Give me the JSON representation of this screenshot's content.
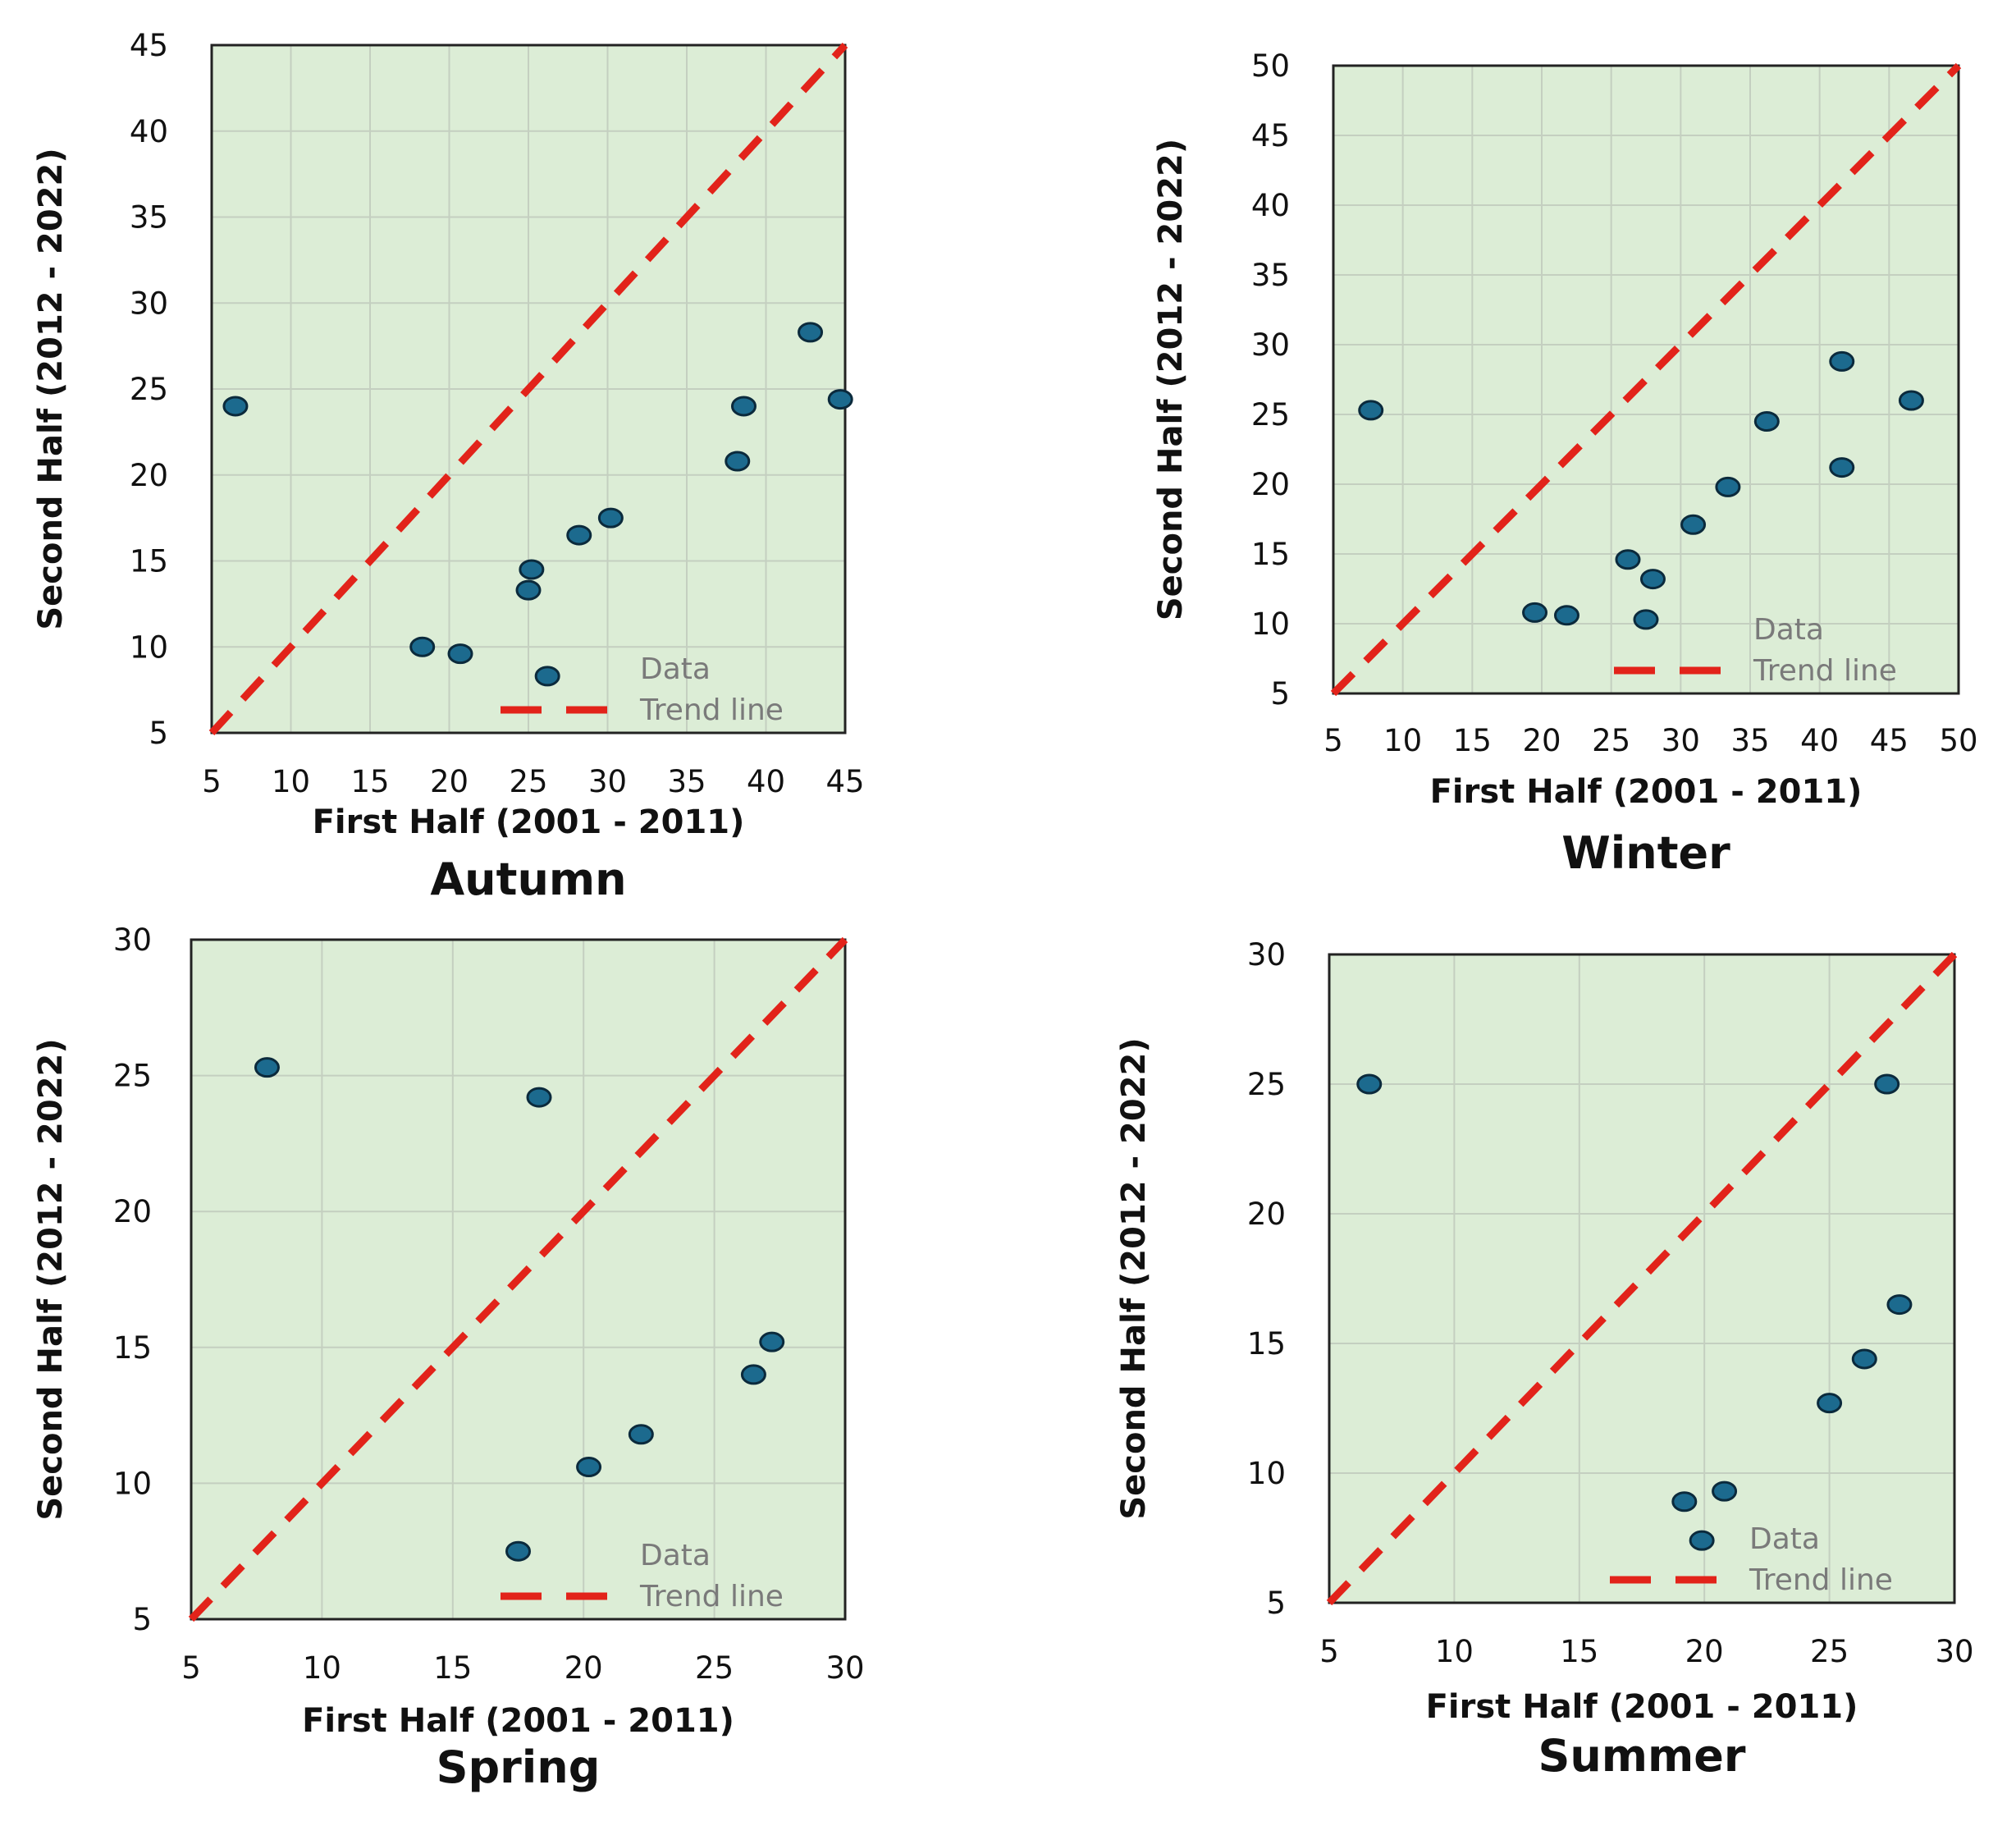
{
  "chart_data": [
    {
      "type": "scatter",
      "title": "Autumn",
      "xlabel": "First Half (2001 - 2011)",
      "ylabel": "Second Half (2012 - 2022)",
      "xlim": [
        5,
        45
      ],
      "ylim": [
        5,
        45
      ],
      "xticks": [
        5,
        10,
        15,
        20,
        25,
        30,
        35,
        40,
        45
      ],
      "yticks": [
        5,
        10,
        15,
        20,
        25,
        30,
        35,
        40,
        45
      ],
      "grid": true,
      "legend_position": "bottom-right",
      "series": [
        {
          "name": "Data",
          "points": [
            [
              6.5,
              24.0
            ],
            [
              18.3,
              10.0
            ],
            [
              20.7,
              9.6
            ],
            [
              25.0,
              13.3
            ],
            [
              25.2,
              14.5
            ],
            [
              26.2,
              8.3
            ],
            [
              28.2,
              16.5
            ],
            [
              30.2,
              17.5
            ],
            [
              38.2,
              20.8
            ],
            [
              38.6,
              24.0
            ],
            [
              42.8,
              28.3
            ],
            [
              44.7,
              24.4
            ]
          ]
        },
        {
          "name": "Trend line",
          "points": [
            [
              5,
              5
            ],
            [
              45,
              45
            ]
          ]
        }
      ]
    },
    {
      "type": "scatter",
      "title": "Winter",
      "xlabel": "First Half (2001 - 2011)",
      "ylabel": "Second Half (2012 - 2022)",
      "xlim": [
        5,
        50
      ],
      "ylim": [
        5,
        50
      ],
      "xticks": [
        5,
        10,
        15,
        20,
        25,
        30,
        35,
        40,
        45,
        50
      ],
      "yticks": [
        5,
        10,
        15,
        20,
        25,
        30,
        35,
        40,
        45,
        50
      ],
      "grid": true,
      "legend_position": "bottom-right",
      "series": [
        {
          "name": "Data",
          "points": [
            [
              7.7,
              25.3
            ],
            [
              19.5,
              10.8
            ],
            [
              21.8,
              10.6
            ],
            [
              26.2,
              14.6
            ],
            [
              27.5,
              10.3
            ],
            [
              28.0,
              13.2
            ],
            [
              30.9,
              17.1
            ],
            [
              33.4,
              19.8
            ],
            [
              36.2,
              24.5
            ],
            [
              41.6,
              28.8
            ],
            [
              41.6,
              21.2
            ],
            [
              46.6,
              26.0
            ]
          ]
        },
        {
          "name": "Trend line",
          "points": [
            [
              5,
              5
            ],
            [
              50,
              50
            ]
          ]
        }
      ]
    },
    {
      "type": "scatter",
      "title": "Spring",
      "xlabel": "First Half (2001 - 2011)",
      "ylabel": "Second Half (2012 - 2022)",
      "xlim": [
        5,
        30
      ],
      "ylim": [
        5,
        30
      ],
      "xticks": [
        5,
        10,
        15,
        20,
        25,
        30
      ],
      "yticks": [
        5,
        10,
        15,
        20,
        25,
        30
      ],
      "grid": true,
      "legend_position": "bottom-right",
      "series": [
        {
          "name": "Data",
          "points": [
            [
              7.9,
              25.3
            ],
            [
              17.5,
              7.5
            ],
            [
              18.3,
              24.2
            ],
            [
              20.2,
              10.6
            ],
            [
              22.2,
              11.8
            ],
            [
              26.5,
              14.0
            ],
            [
              27.2,
              15.2
            ]
          ]
        },
        {
          "name": "Trend line",
          "points": [
            [
              5,
              5
            ],
            [
              30,
              30
            ]
          ]
        }
      ]
    },
    {
      "type": "scatter",
      "title": "Summer",
      "xlabel": "First Half (2001 - 2011)",
      "ylabel": "Second Half (2012 - 2022)",
      "xlim": [
        5,
        30
      ],
      "ylim": [
        5,
        30
      ],
      "xticks": [
        5,
        10,
        15,
        20,
        25,
        30
      ],
      "yticks": [
        5,
        10,
        15,
        20,
        25,
        30
      ],
      "grid": true,
      "legend_position": "bottom-right",
      "series": [
        {
          "name": "Data",
          "points": [
            [
              6.6,
              25.0
            ],
            [
              19.2,
              8.9
            ],
            [
              19.9,
              7.4
            ],
            [
              20.8,
              9.3
            ],
            [
              25.0,
              12.7
            ],
            [
              26.4,
              14.4
            ],
            [
              27.3,
              25.0
            ],
            [
              27.8,
              16.5
            ]
          ]
        },
        {
          "name": "Trend line",
          "points": [
            [
              5,
              5
            ],
            [
              30,
              30
            ]
          ]
        }
      ]
    }
  ],
  "colors": {
    "plot_background": "#dcedd6",
    "grid": "#c4cfc0",
    "marker_fill": "#1c6a8e",
    "marker_edge": "#0b2a3c",
    "trend_line": "#e2231a"
  }
}
